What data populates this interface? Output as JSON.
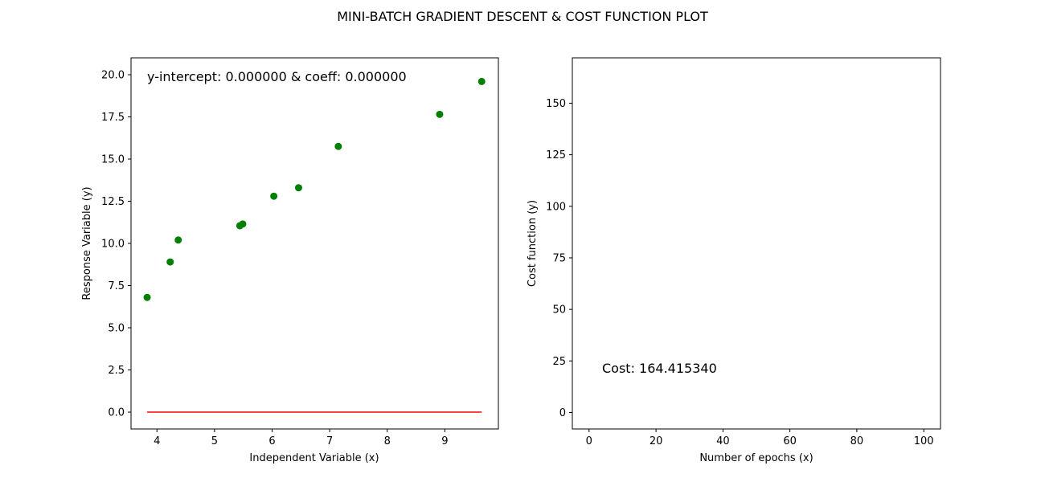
{
  "figure": {
    "title": "MINI-BATCH GRADIENT DESCENT & COST FUNCTION PLOT"
  },
  "chart_data": [
    {
      "type": "scatter",
      "title": "",
      "xlabel": "Independent Variable (x)",
      "ylabel": "Response Variable (y)",
      "xlim": [
        3.55,
        9.93
      ],
      "ylim": [
        -1.0,
        21.0
      ],
      "xticks": [
        4,
        5,
        6,
        7,
        8,
        9
      ],
      "yticks": [
        0.0,
        2.5,
        5.0,
        7.5,
        10.0,
        12.5,
        15.0,
        17.5,
        20.0
      ],
      "grid": false,
      "point_color": "#008000",
      "points": [
        {
          "x": 3.83,
          "y": 6.8
        },
        {
          "x": 4.23,
          "y": 8.9
        },
        {
          "x": 4.37,
          "y": 10.2
        },
        {
          "x": 5.44,
          "y": 11.05
        },
        {
          "x": 5.49,
          "y": 11.15
        },
        {
          "x": 6.03,
          "y": 12.8
        },
        {
          "x": 6.46,
          "y": 13.3
        },
        {
          "x": 7.15,
          "y": 15.75
        },
        {
          "x": 8.91,
          "y": 17.65
        },
        {
          "x": 9.64,
          "y": 19.6
        }
      ],
      "fit_line": {
        "color": "#ff0000",
        "x": [
          3.83,
          9.64
        ],
        "y": [
          0.0,
          0.0
        ]
      },
      "annotation": "y-intercept: 0.000000 & coeff: 0.000000"
    },
    {
      "type": "line",
      "title": "",
      "xlabel": "Number of epochs (x)",
      "ylabel": "Cost function (y)",
      "xlim": [
        -5,
        105
      ],
      "ylim": [
        -8,
        172
      ],
      "xticks": [
        0,
        20,
        40,
        60,
        80,
        100
      ],
      "yticks": [
        0,
        25,
        50,
        75,
        100,
        125,
        150
      ],
      "grid": false,
      "series": [],
      "annotation": "Cost: 164.415340"
    }
  ]
}
